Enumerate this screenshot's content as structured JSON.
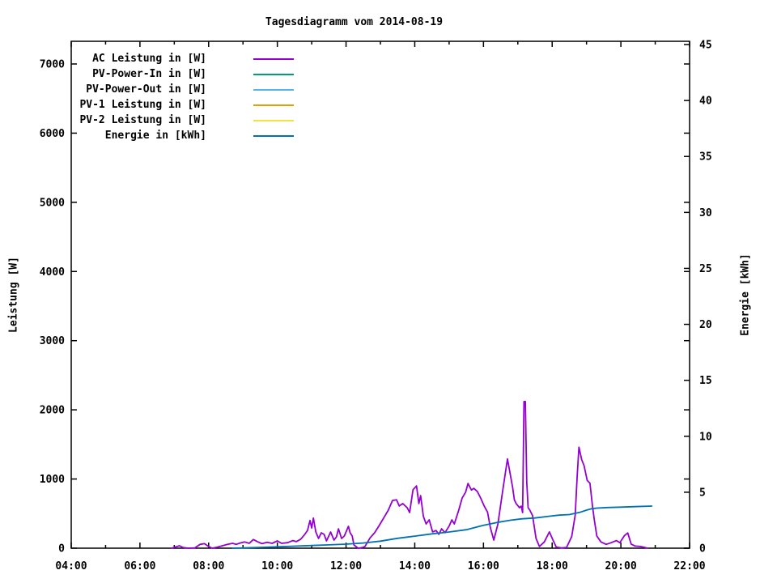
{
  "title": "Tagesdiagramm vom 2014-08-19",
  "chart_data": {
    "type": "line",
    "title": "Tagesdiagramm vom 2014-08-19",
    "grid": false,
    "legend_position": "top-left-inside",
    "x_axis": {
      "unit": "time",
      "range_hours": [
        4,
        22
      ],
      "major_tick_every_hours": 2,
      "minor_tick_every_hours": 1,
      "tick_labels": [
        "04:00",
        "06:00",
        "08:00",
        "10:00",
        "12:00",
        "14:00",
        "16:00",
        "18:00",
        "20:00",
        "22:00"
      ]
    },
    "y1_axis": {
      "title": "Leistung [W]",
      "side": "left",
      "range": [
        0,
        7327
      ],
      "ticks": [
        0,
        1000,
        2000,
        3000,
        4000,
        5000,
        6000,
        7000
      ]
    },
    "y2_axis": {
      "title": "Energie [kWh]",
      "side": "right",
      "range": [
        0,
        45.3
      ],
      "ticks": [
        0,
        5,
        10,
        15,
        20,
        25,
        30,
        35,
        40,
        45
      ]
    },
    "series": [
      {
        "name": "AC Leistung in [W]",
        "color": "#9400D3",
        "axis": "y1",
        "visible_in_plot": true,
        "points": [
          [
            6.92,
            0
          ],
          [
            7.05,
            20
          ],
          [
            7.15,
            35
          ],
          [
            7.25,
            10
          ],
          [
            7.4,
            0
          ],
          [
            7.6,
            5
          ],
          [
            7.75,
            55
          ],
          [
            7.88,
            65
          ],
          [
            7.98,
            30
          ],
          [
            8.1,
            0
          ],
          [
            8.25,
            15
          ],
          [
            8.4,
            35
          ],
          [
            8.55,
            55
          ],
          [
            8.7,
            70
          ],
          [
            8.8,
            55
          ],
          [
            8.92,
            75
          ],
          [
            9.05,
            90
          ],
          [
            9.18,
            70
          ],
          [
            9.3,
            125
          ],
          [
            9.42,
            95
          ],
          [
            9.55,
            65
          ],
          [
            9.7,
            85
          ],
          [
            9.85,
            70
          ],
          [
            10.0,
            105
          ],
          [
            10.12,
            70
          ],
          [
            10.3,
            80
          ],
          [
            10.45,
            110
          ],
          [
            10.55,
            95
          ],
          [
            10.68,
            130
          ],
          [
            10.8,
            200
          ],
          [
            10.88,
            257
          ],
          [
            10.95,
            400
          ],
          [
            11.0,
            292
          ],
          [
            11.05,
            435
          ],
          [
            11.12,
            234
          ],
          [
            11.2,
            140
          ],
          [
            11.28,
            222
          ],
          [
            11.36,
            200
          ],
          [
            11.43,
            105
          ],
          [
            11.55,
            234
          ],
          [
            11.65,
            117
          ],
          [
            11.72,
            164
          ],
          [
            11.78,
            280
          ],
          [
            11.87,
            140
          ],
          [
            11.95,
            175
          ],
          [
            12.07,
            316
          ],
          [
            12.12,
            222
          ],
          [
            12.18,
            175
          ],
          [
            12.23,
            47
          ],
          [
            12.35,
            0
          ],
          [
            12.48,
            10
          ],
          [
            12.55,
            25
          ],
          [
            12.7,
            150
          ],
          [
            12.83,
            222
          ],
          [
            12.95,
            316
          ],
          [
            13.1,
            440
          ],
          [
            13.23,
            550
          ],
          [
            13.35,
            690
          ],
          [
            13.47,
            700
          ],
          [
            13.55,
            610
          ],
          [
            13.65,
            645
          ],
          [
            13.78,
            585
          ],
          [
            13.85,
            515
          ],
          [
            13.95,
            845
          ],
          [
            14.05,
            900
          ],
          [
            14.12,
            645
          ],
          [
            14.17,
            760
          ],
          [
            14.25,
            460
          ],
          [
            14.33,
            350
          ],
          [
            14.42,
            410
          ],
          [
            14.52,
            235
          ],
          [
            14.62,
            255
          ],
          [
            14.7,
            200
          ],
          [
            14.78,
            280
          ],
          [
            14.88,
            225
          ],
          [
            15.0,
            320
          ],
          [
            15.08,
            410
          ],
          [
            15.15,
            350
          ],
          [
            15.28,
            550
          ],
          [
            15.38,
            725
          ],
          [
            15.48,
            810
          ],
          [
            15.55,
            935
          ],
          [
            15.65,
            840
          ],
          [
            15.72,
            865
          ],
          [
            15.82,
            820
          ],
          [
            15.92,
            725
          ],
          [
            16.02,
            610
          ],
          [
            16.12,
            520
          ],
          [
            16.2,
            300
          ],
          [
            16.3,
            117
          ],
          [
            16.42,
            351
          ],
          [
            16.55,
            800
          ],
          [
            16.7,
            1290
          ],
          [
            16.85,
            877
          ],
          [
            16.9,
            700
          ],
          [
            16.95,
            645
          ],
          [
            17.05,
            585
          ],
          [
            17.1,
            608
          ],
          [
            17.14,
            515
          ],
          [
            17.18,
            2120
          ],
          [
            17.22,
            2120
          ],
          [
            17.26,
            960
          ],
          [
            17.3,
            585
          ],
          [
            17.35,
            550
          ],
          [
            17.43,
            470
          ],
          [
            17.53,
            140
          ],
          [
            17.63,
            25
          ],
          [
            17.77,
            90
          ],
          [
            17.92,
            235
          ],
          [
            18.02,
            120
          ],
          [
            18.12,
            15
          ],
          [
            18.27,
            5
          ],
          [
            18.42,
            10
          ],
          [
            18.57,
            170
          ],
          [
            18.67,
            480
          ],
          [
            18.73,
            1060
          ],
          [
            18.78,
            1460
          ],
          [
            18.86,
            1280
          ],
          [
            18.93,
            1190
          ],
          [
            19.02,
            980
          ],
          [
            19.1,
            940
          ],
          [
            19.17,
            620
          ],
          [
            19.23,
            400
          ],
          [
            19.3,
            175
          ],
          [
            19.42,
            90
          ],
          [
            19.57,
            55
          ],
          [
            19.72,
            80
          ],
          [
            19.87,
            110
          ],
          [
            19.97,
            80
          ],
          [
            20.1,
            180
          ],
          [
            20.2,
            220
          ],
          [
            20.3,
            60
          ],
          [
            20.42,
            30
          ],
          [
            20.57,
            25
          ],
          [
            20.7,
            10
          ],
          [
            20.78,
            0
          ]
        ]
      },
      {
        "name": "PV-Power-In in [W]",
        "color": "#009E73",
        "axis": "y1",
        "visible_in_plot": false,
        "points": []
      },
      {
        "name": "PV-Power-Out in [W]",
        "color": "#56B4E9",
        "axis": "y1",
        "visible_in_plot": false,
        "points": []
      },
      {
        "name": "PV-1 Leistung in [W]",
        "color": "#E69F00",
        "axis": "y1",
        "visible_in_plot": false,
        "points": []
      },
      {
        "name": "PV-2 Leistung in [W]",
        "color": "#F0E442",
        "axis": "y1",
        "visible_in_plot": false,
        "points": []
      },
      {
        "name": "Energie in [kWh]",
        "color": "#0072B2",
        "axis": "y2",
        "visible_in_plot": true,
        "points": [
          [
            8.7,
            0
          ],
          [
            9.0,
            0.03
          ],
          [
            9.5,
            0.07
          ],
          [
            10.0,
            0.12
          ],
          [
            10.5,
            0.18
          ],
          [
            11.0,
            0.24
          ],
          [
            11.5,
            0.3
          ],
          [
            12.0,
            0.36
          ],
          [
            12.5,
            0.46
          ],
          [
            13.0,
            0.63
          ],
          [
            13.5,
            0.88
          ],
          [
            14.0,
            1.08
          ],
          [
            14.5,
            1.28
          ],
          [
            15.0,
            1.45
          ],
          [
            15.5,
            1.65
          ],
          [
            16.0,
            2.05
          ],
          [
            16.4,
            2.3
          ],
          [
            16.8,
            2.5
          ],
          [
            17.1,
            2.62
          ],
          [
            17.5,
            2.7
          ],
          [
            17.9,
            2.85
          ],
          [
            18.2,
            2.95
          ],
          [
            18.5,
            3.0
          ],
          [
            18.8,
            3.2
          ],
          [
            19.0,
            3.4
          ],
          [
            19.15,
            3.52
          ],
          [
            19.3,
            3.58
          ],
          [
            19.6,
            3.63
          ],
          [
            20.0,
            3.67
          ],
          [
            20.4,
            3.71
          ],
          [
            20.9,
            3.76
          ]
        ]
      }
    ]
  }
}
